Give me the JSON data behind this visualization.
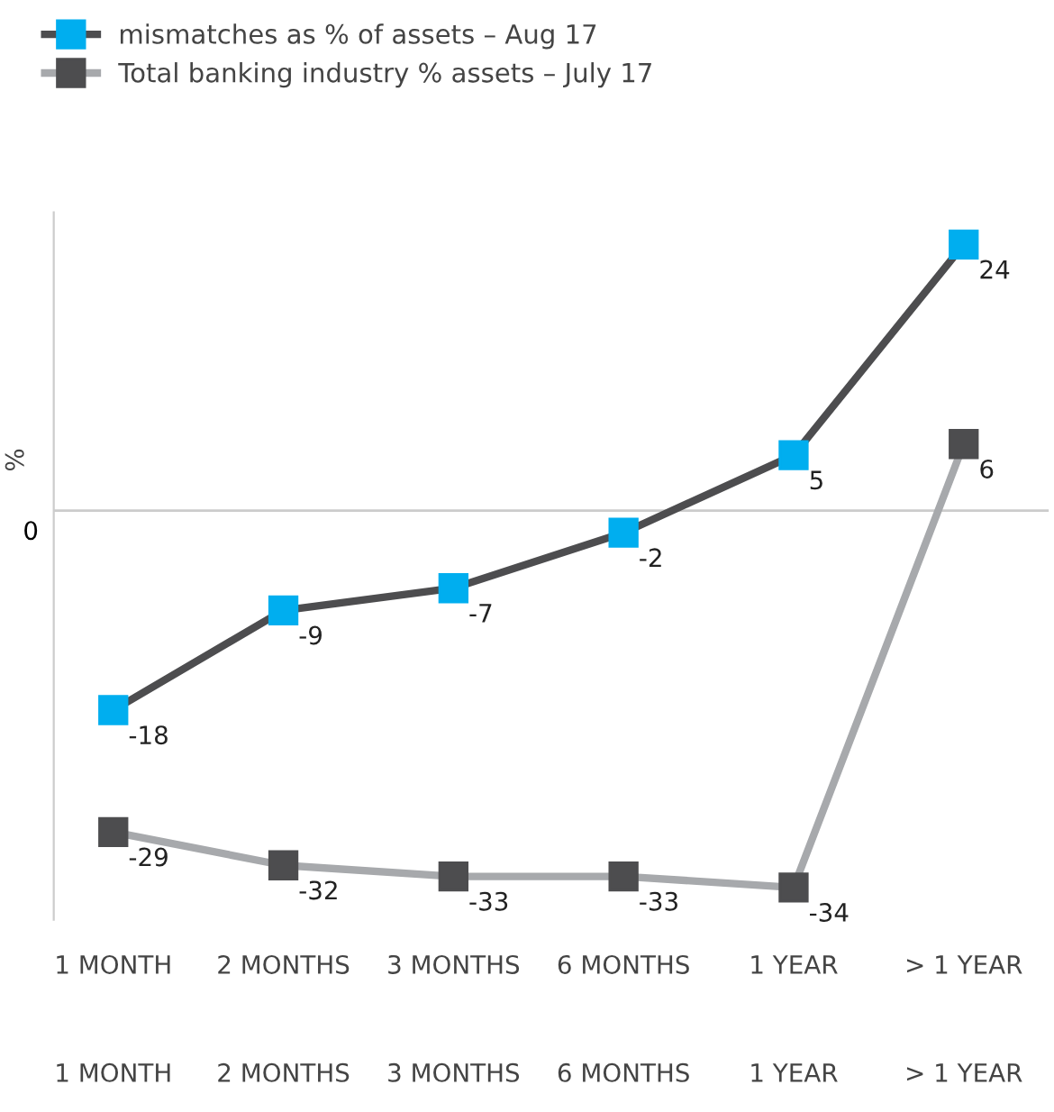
{
  "chart_data": {
    "type": "line",
    "ylabel": "%",
    "categories": [
      "1 MONTH",
      "2 MONTHS",
      "3 MONTHS",
      "6 MONTHS",
      "1 YEAR",
      "> 1 YEAR"
    ],
    "series": [
      {
        "name": "mismatches as % of assets – Aug 17",
        "color": "#00aeef",
        "values": [
          -18,
          -9,
          -7,
          -2,
          5,
          24
        ]
      },
      {
        "name": "Total banking industry % assets – July 17",
        "color": "#4d4d4f",
        "values": [
          -29,
          -32,
          -33,
          -33,
          -34,
          6
        ]
      }
    ],
    "ref_lines": [
      {
        "axis": "y",
        "value": 0,
        "color": "#cccccc",
        "label": "0"
      }
    ],
    "marker": "square",
    "line_style": "solid",
    "data_labels": true,
    "legend": "top left",
    "grid": false
  }
}
